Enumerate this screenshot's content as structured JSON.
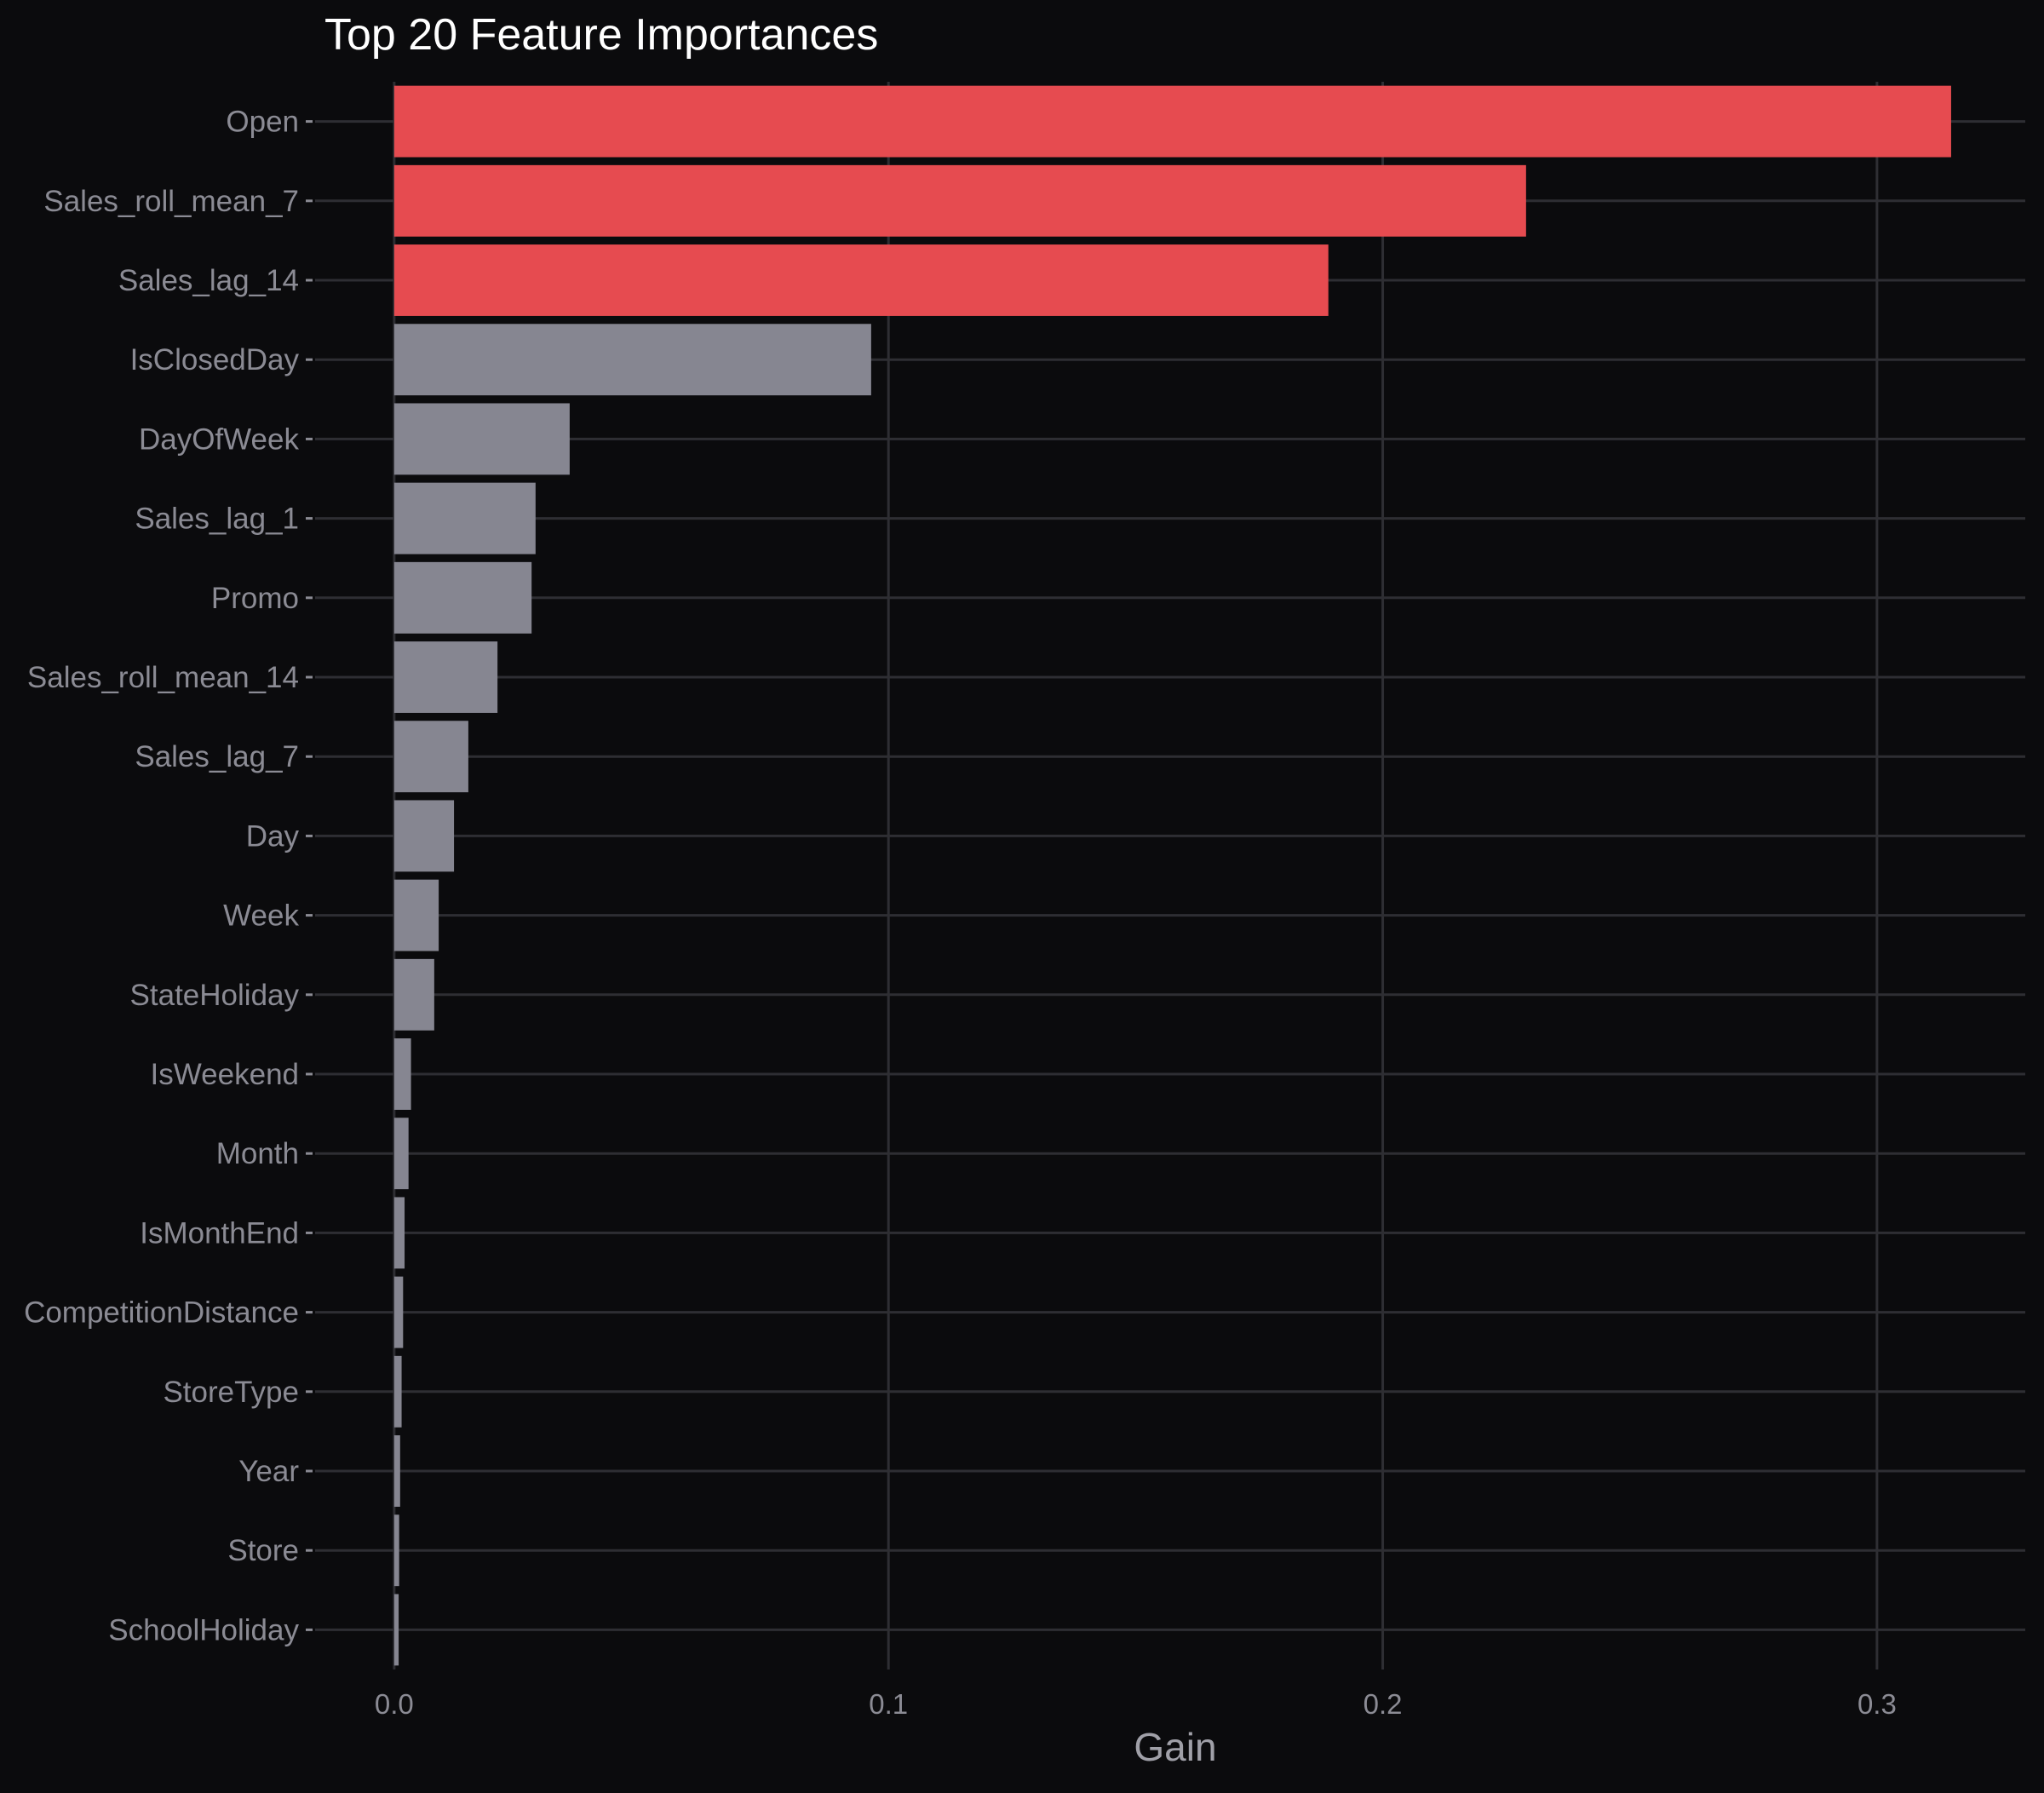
{
  "chart_data": {
    "type": "bar",
    "orientation": "horizontal",
    "title": "Top 20 Feature Importances",
    "xlabel": "Gain",
    "ylabel": "",
    "xlim": [
      -0.016,
      0.33
    ],
    "x_ticks": [
      0.0,
      0.1,
      0.2,
      0.3
    ],
    "x_tick_labels": [
      "0.0",
      "0.1",
      "0.2",
      "0.3"
    ],
    "grid": true,
    "legend": "none",
    "colors": {
      "background": "#0b0b0d",
      "highlight": "#e64b50",
      "default": "#868691",
      "grid": "#2e2e33",
      "tick_label": "#8b8b94",
      "title": "#ffffff",
      "axis_label": "#a0a0a8"
    },
    "highlight_top_n": 3,
    "categories": [
      "Open",
      "Sales_roll_mean_7",
      "Sales_lag_14",
      "IsClosedDay",
      "DayOfWeek",
      "Sales_lag_1",
      "Promo",
      "Sales_roll_mean_14",
      "Sales_lag_7",
      "Day",
      "Week",
      "StateHoliday",
      "IsWeekend",
      "Month",
      "IsMonthEnd",
      "CompetitionDistance",
      "StoreType",
      "Year",
      "Store",
      "SchoolHoliday"
    ],
    "values": [
      0.315,
      0.229,
      0.189,
      0.0965,
      0.0355,
      0.0286,
      0.0278,
      0.0209,
      0.015,
      0.0121,
      0.009,
      0.0081,
      0.0034,
      0.0029,
      0.0021,
      0.0018,
      0.0015,
      0.0012,
      0.001,
      0.0009
    ]
  }
}
